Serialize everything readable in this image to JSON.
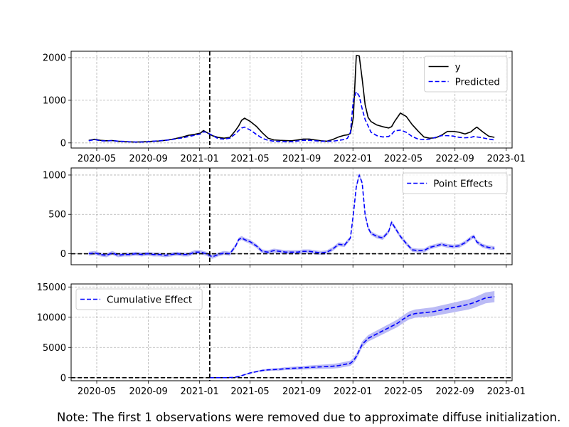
{
  "note": "Note: The first 1 observations were removed due to approximate diffuse initialization.",
  "colors": {
    "actual": "#000000",
    "predicted": "#0000ff",
    "band": "#bbbbf5",
    "grid": "#b0b0b0"
  },
  "chart_data": [
    {
      "type": "line",
      "title": "",
      "xlabel": "",
      "ylabel": "",
      "x_axis_type": "date",
      "xlim": [
        "2020-03-01",
        "2023-01-15"
      ],
      "ylim": [
        -120,
        2150
      ],
      "grid": true,
      "legend_position": "upper-right",
      "x_tick_labels": [
        "2020-05",
        "2020-09",
        "2021-01",
        "2021-05",
        "2021-09",
        "2022-01",
        "2022-05",
        "2022-09",
        "2023-01"
      ],
      "y_tick_labels": [
        "0",
        "1000",
        "2000"
      ],
      "intervention_date": "2021-01-25",
      "series": [
        {
          "name": "y",
          "style": "solid",
          "color": "#000000",
          "x": [
            "2020-04-12",
            "2020-04-26",
            "2020-05-10",
            "2020-05-24",
            "2020-06-07",
            "2020-06-21",
            "2020-07-05",
            "2020-07-19",
            "2020-08-02",
            "2020-08-16",
            "2020-08-30",
            "2020-09-13",
            "2020-09-27",
            "2020-10-11",
            "2020-10-25",
            "2020-11-08",
            "2020-11-22",
            "2020-12-06",
            "2020-12-20",
            "2021-01-03",
            "2021-01-10",
            "2021-01-17",
            "2021-01-31",
            "2021-02-14",
            "2021-02-28",
            "2021-03-14",
            "2021-03-28",
            "2021-04-04",
            "2021-04-11",
            "2021-04-18",
            "2021-05-02",
            "2021-05-16",
            "2021-05-30",
            "2021-06-13",
            "2021-06-27",
            "2021-07-11",
            "2021-07-25",
            "2021-08-08",
            "2021-08-22",
            "2021-09-05",
            "2021-09-19",
            "2021-10-03",
            "2021-10-17",
            "2021-10-31",
            "2021-11-14",
            "2021-11-28",
            "2021-12-12",
            "2021-12-19",
            "2021-12-26",
            "2022-01-02",
            "2022-01-09",
            "2022-01-16",
            "2022-01-23",
            "2022-01-30",
            "2022-02-06",
            "2022-02-13",
            "2022-02-27",
            "2022-03-13",
            "2022-03-27",
            "2022-04-03",
            "2022-04-10",
            "2022-04-24",
            "2022-05-08",
            "2022-05-22",
            "2022-06-05",
            "2022-06-19",
            "2022-07-03",
            "2022-07-17",
            "2022-07-31",
            "2022-08-14",
            "2022-08-28",
            "2022-09-11",
            "2022-09-25",
            "2022-10-09",
            "2022-10-16",
            "2022-10-23",
            "2022-11-06",
            "2022-11-20",
            "2022-12-04"
          ],
          "values": [
            60,
            85,
            60,
            50,
            55,
            40,
            30,
            25,
            20,
            25,
            30,
            40,
            45,
            60,
            80,
            110,
            140,
            180,
            200,
            230,
            290,
            250,
            170,
            130,
            110,
            130,
            300,
            400,
            530,
            580,
            500,
            390,
            240,
            110,
            70,
            60,
            55,
            50,
            70,
            90,
            90,
            70,
            50,
            40,
            80,
            140,
            180,
            190,
            220,
            600,
            2050,
            2040,
            1500,
            900,
            600,
            500,
            420,
            380,
            350,
            380,
            500,
            700,
            620,
            430,
            280,
            140,
            110,
            120,
            180,
            270,
            270,
            250,
            210,
            260,
            320,
            370,
            260,
            160,
            130
          ]
        },
        {
          "name": "Predicted",
          "style": "dashed",
          "color": "#0000ff",
          "x": [
            "2020-04-12",
            "2020-04-26",
            "2020-05-10",
            "2020-05-24",
            "2020-06-07",
            "2020-06-21",
            "2020-07-05",
            "2020-07-19",
            "2020-08-02",
            "2020-08-16",
            "2020-08-30",
            "2020-09-13",
            "2020-09-27",
            "2020-10-11",
            "2020-10-25",
            "2020-11-08",
            "2020-11-22",
            "2020-12-06",
            "2020-12-20",
            "2021-01-03",
            "2021-01-10",
            "2021-01-17",
            "2021-01-31",
            "2021-02-14",
            "2021-02-28",
            "2021-03-14",
            "2021-03-28",
            "2021-04-04",
            "2021-04-11",
            "2021-04-18",
            "2021-05-02",
            "2021-05-16",
            "2021-05-30",
            "2021-06-13",
            "2021-06-27",
            "2021-07-11",
            "2021-07-25",
            "2021-08-08",
            "2021-08-22",
            "2021-09-05",
            "2021-09-19",
            "2021-10-03",
            "2021-10-17",
            "2021-10-31",
            "2021-11-14",
            "2021-11-28",
            "2021-12-12",
            "2021-12-19",
            "2021-12-26",
            "2022-01-02",
            "2022-01-09",
            "2022-01-16",
            "2022-01-23",
            "2022-01-30",
            "2022-02-06",
            "2022-02-13",
            "2022-02-27",
            "2022-03-13",
            "2022-03-27",
            "2022-04-03",
            "2022-04-10",
            "2022-04-24",
            "2022-05-08",
            "2022-05-22",
            "2022-06-05",
            "2022-06-19",
            "2022-07-03",
            "2022-07-17",
            "2022-07-31",
            "2022-08-14",
            "2022-08-28",
            "2022-09-11",
            "2022-09-25",
            "2022-10-09",
            "2022-10-16",
            "2022-10-23",
            "2022-11-06",
            "2022-11-20",
            "2022-12-04"
          ],
          "values": [
            50,
            80,
            50,
            45,
            55,
            40,
            35,
            25,
            20,
            20,
            25,
            40,
            50,
            60,
            75,
            100,
            120,
            150,
            180,
            210,
            260,
            250,
            180,
            100,
            90,
            110,
            220,
            290,
            350,
            370,
            300,
            200,
            110,
            60,
            40,
            35,
            30,
            30,
            45,
            60,
            60,
            50,
            40,
            40,
            40,
            60,
            80,
            110,
            250,
            1000,
            1200,
            1100,
            800,
            550,
            400,
            250,
            170,
            140,
            150,
            200,
            280,
            300,
            250,
            150,
            90,
            80,
            90,
            130,
            170,
            170,
            160,
            130,
            120,
            130,
            150,
            140,
            120,
            90,
            70
          ]
        }
      ]
    },
    {
      "type": "line",
      "title": "",
      "xlabel": "",
      "ylabel": "",
      "x_axis_type": "date",
      "xlim": [
        "2020-03-01",
        "2023-01-15"
      ],
      "ylim": [
        -140,
        1090
      ],
      "grid": true,
      "legend_position": "upper-right",
      "x_tick_labels": [],
      "y_tick_labels": [
        "0",
        "500",
        "1000"
      ],
      "intervention_date": "2021-01-25",
      "baseline": 0,
      "series": [
        {
          "name": "Point Effects",
          "style": "dashed",
          "color": "#0000ff",
          "band": 25,
          "x": [
            "2020-04-12",
            "2020-04-26",
            "2020-05-10",
            "2020-05-24",
            "2020-06-07",
            "2020-06-21",
            "2020-07-05",
            "2020-07-19",
            "2020-08-02",
            "2020-08-16",
            "2020-08-30",
            "2020-09-13",
            "2020-09-27",
            "2020-10-11",
            "2020-10-25",
            "2020-11-08",
            "2020-11-22",
            "2020-12-06",
            "2020-12-20",
            "2021-01-03",
            "2021-01-17",
            "2021-01-31",
            "2021-02-14",
            "2021-02-28",
            "2021-03-14",
            "2021-03-28",
            "2021-04-04",
            "2021-04-11",
            "2021-04-18",
            "2021-05-02",
            "2021-05-16",
            "2021-05-30",
            "2021-06-13",
            "2021-06-27",
            "2021-07-11",
            "2021-07-25",
            "2021-08-08",
            "2021-08-22",
            "2021-09-05",
            "2021-09-19",
            "2021-10-03",
            "2021-10-17",
            "2021-10-31",
            "2021-11-14",
            "2021-11-28",
            "2021-12-12",
            "2021-12-26",
            "2022-01-02",
            "2022-01-09",
            "2022-01-16",
            "2022-01-23",
            "2022-01-30",
            "2022-02-06",
            "2022-02-13",
            "2022-02-27",
            "2022-03-13",
            "2022-03-27",
            "2022-04-03",
            "2022-04-10",
            "2022-04-24",
            "2022-05-08",
            "2022-05-22",
            "2022-06-05",
            "2022-06-19",
            "2022-07-03",
            "2022-07-17",
            "2022-07-31",
            "2022-08-14",
            "2022-08-28",
            "2022-09-11",
            "2022-09-25",
            "2022-10-09",
            "2022-10-16",
            "2022-10-23",
            "2022-11-06",
            "2022-11-20",
            "2022-12-04"
          ],
          "values": [
            0,
            10,
            -10,
            -20,
            10,
            -20,
            -10,
            -10,
            0,
            -10,
            0,
            -10,
            -10,
            -20,
            -10,
            0,
            -10,
            -10,
            20,
            20,
            0,
            -40,
            -10,
            10,
            0,
            100,
            180,
            200,
            180,
            150,
            100,
            30,
            20,
            40,
            30,
            20,
            20,
            20,
            30,
            30,
            20,
            10,
            20,
            60,
            120,
            110,
            200,
            500,
            850,
            1000,
            900,
            500,
            330,
            260,
            220,
            200,
            280,
            400,
            340,
            220,
            130,
            50,
            40,
            40,
            80,
            100,
            120,
            100,
            90,
            100,
            140,
            200,
            220,
            150,
            100,
            80,
            70
          ]
        }
      ]
    },
    {
      "type": "line",
      "title": "",
      "xlabel": "",
      "ylabel": "",
      "x_axis_type": "date",
      "xlim": [
        "2020-03-01",
        "2023-01-15"
      ],
      "ylim": [
        -500,
        15500
      ],
      "grid": true,
      "legend_position": "upper-left",
      "x_tick_labels": [
        "2020-05",
        "2020-09",
        "2021-01",
        "2021-05",
        "2021-09",
        "2022-01",
        "2022-05",
        "2022-09",
        "2023-01"
      ],
      "y_tick_labels": [
        "0",
        "5000",
        "10000",
        "15000"
      ],
      "intervention_date": "2021-01-25",
      "baseline": 0,
      "series": [
        {
          "name": "Cumulative Effect",
          "style": "dashed",
          "color": "#0000ff",
          "band_widening": true,
          "x": [
            "2021-01-25",
            "2021-02-14",
            "2021-03-07",
            "2021-03-21",
            "2021-04-04",
            "2021-04-18",
            "2021-05-02",
            "2021-05-16",
            "2021-05-30",
            "2021-06-13",
            "2021-06-27",
            "2021-07-11",
            "2021-07-25",
            "2021-08-08",
            "2021-08-22",
            "2021-09-05",
            "2021-09-19",
            "2021-10-03",
            "2021-10-17",
            "2021-10-31",
            "2021-11-14",
            "2021-11-28",
            "2021-12-12",
            "2021-12-26",
            "2022-01-02",
            "2022-01-09",
            "2022-01-16",
            "2022-01-23",
            "2022-02-06",
            "2022-02-20",
            "2022-03-06",
            "2022-03-20",
            "2022-04-03",
            "2022-04-17",
            "2022-05-01",
            "2022-05-15",
            "2022-05-29",
            "2022-06-12",
            "2022-06-26",
            "2022-07-10",
            "2022-07-24",
            "2022-08-07",
            "2022-08-21",
            "2022-09-04",
            "2022-09-18",
            "2022-10-02",
            "2022-10-16",
            "2022-10-30",
            "2022-11-13",
            "2022-12-04"
          ],
          "values": [
            0,
            0,
            0,
            50,
            200,
            500,
            800,
            1000,
            1200,
            1300,
            1350,
            1400,
            1500,
            1550,
            1600,
            1650,
            1700,
            1750,
            1800,
            1850,
            1900,
            2000,
            2200,
            2400,
            2800,
            3500,
            4500,
            5500,
            6500,
            7000,
            7500,
            8000,
            8500,
            9000,
            9700,
            10300,
            10600,
            10700,
            10800,
            10900,
            11100,
            11300,
            11500,
            11700,
            11900,
            12100,
            12400,
            12800,
            13200,
            13400
          ]
        }
      ]
    }
  ]
}
